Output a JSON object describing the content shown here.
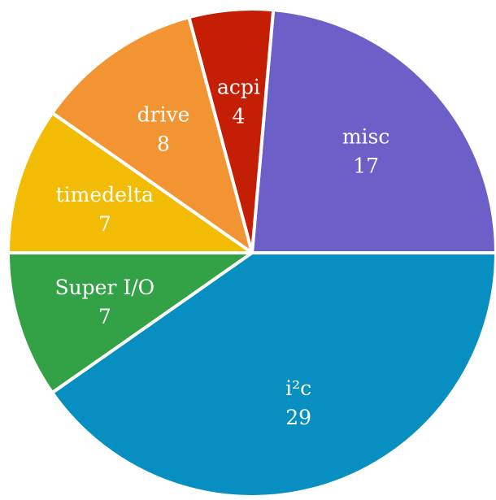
{
  "chart_data": {
    "type": "pie",
    "start_angle_deg": 0,
    "direction": "counterclockwise",
    "slices": [
      {
        "label": "misc",
        "value": 17,
        "color": "#6c5fc7"
      },
      {
        "label": "acpi",
        "value": 4,
        "color": "#c41f04"
      },
      {
        "label": "drive",
        "value": 8,
        "color": "#f39433"
      },
      {
        "label": "timedelta",
        "value": 7,
        "color": "#f2bc05"
      },
      {
        "label": "Super I/O",
        "value": 7,
        "color": "#33a146"
      },
      {
        "label": "i²c",
        "value": 29,
        "color": "#088fc2"
      }
    ]
  }
}
